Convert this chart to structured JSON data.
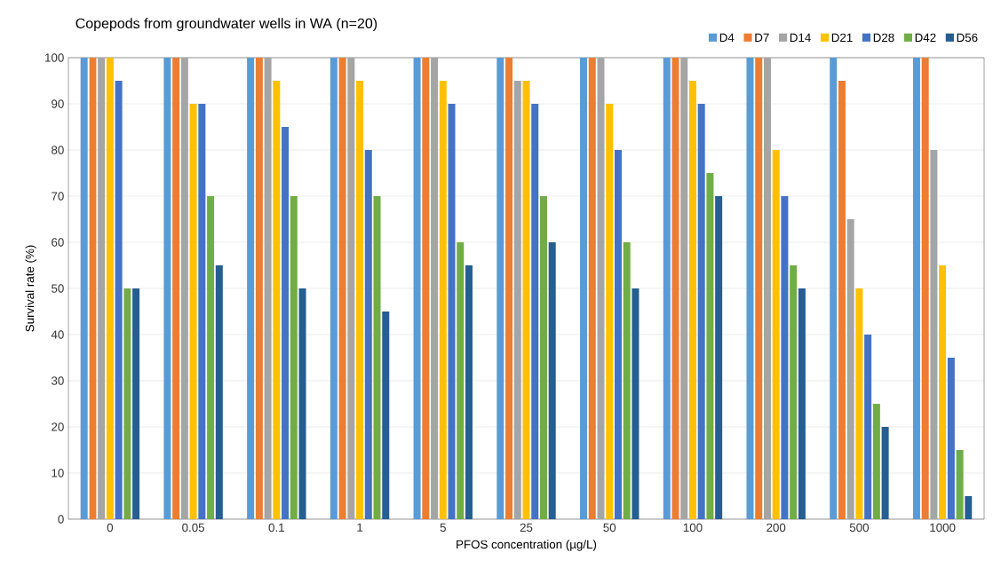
{
  "chart_data": {
    "type": "bar",
    "title": "Copepods from groundwater wells in WA (n=20)",
    "xlabel": "PFOS concentration (µg/L)",
    "ylabel": "Survival rate (%)",
    "categories": [
      "0",
      "0.05",
      "0.1",
      "1",
      "5",
      "25",
      "50",
      "100",
      "200",
      "500",
      "1000"
    ],
    "series": [
      {
        "name": "D4",
        "color": "#5b9bd5",
        "values": [
          100,
          100,
          100,
          100,
          100,
          100,
          100,
          100,
          100,
          100,
          100
        ]
      },
      {
        "name": "D7",
        "color": "#ed7d31",
        "values": [
          100,
          100,
          100,
          100,
          100,
          100,
          100,
          100,
          100,
          95,
          100
        ]
      },
      {
        "name": "D14",
        "color": "#a5a5a5",
        "values": [
          100,
          100,
          100,
          100,
          100,
          95,
          100,
          100,
          100,
          65,
          80
        ]
      },
      {
        "name": "D21",
        "color": "#ffc000",
        "values": [
          100,
          90,
          95,
          95,
          95,
          95,
          90,
          95,
          80,
          50,
          55
        ]
      },
      {
        "name": "D28",
        "color": "#4472c4",
        "values": [
          95,
          90,
          85,
          80,
          90,
          90,
          80,
          90,
          70,
          40,
          35
        ]
      },
      {
        "name": "D42",
        "color": "#70ad47",
        "values": [
          50,
          70,
          70,
          70,
          60,
          70,
          60,
          75,
          55,
          25,
          15
        ]
      },
      {
        "name": "D56",
        "color": "#255e91",
        "values": [
          50,
          55,
          50,
          45,
          55,
          60,
          50,
          70,
          50,
          20,
          5
        ]
      }
    ],
    "ylim": [
      0,
      100
    ],
    "yticks": [
      0,
      10,
      20,
      30,
      40,
      50,
      60,
      70,
      80,
      90,
      100
    ],
    "grid": "y",
    "legend": "top right"
  }
}
